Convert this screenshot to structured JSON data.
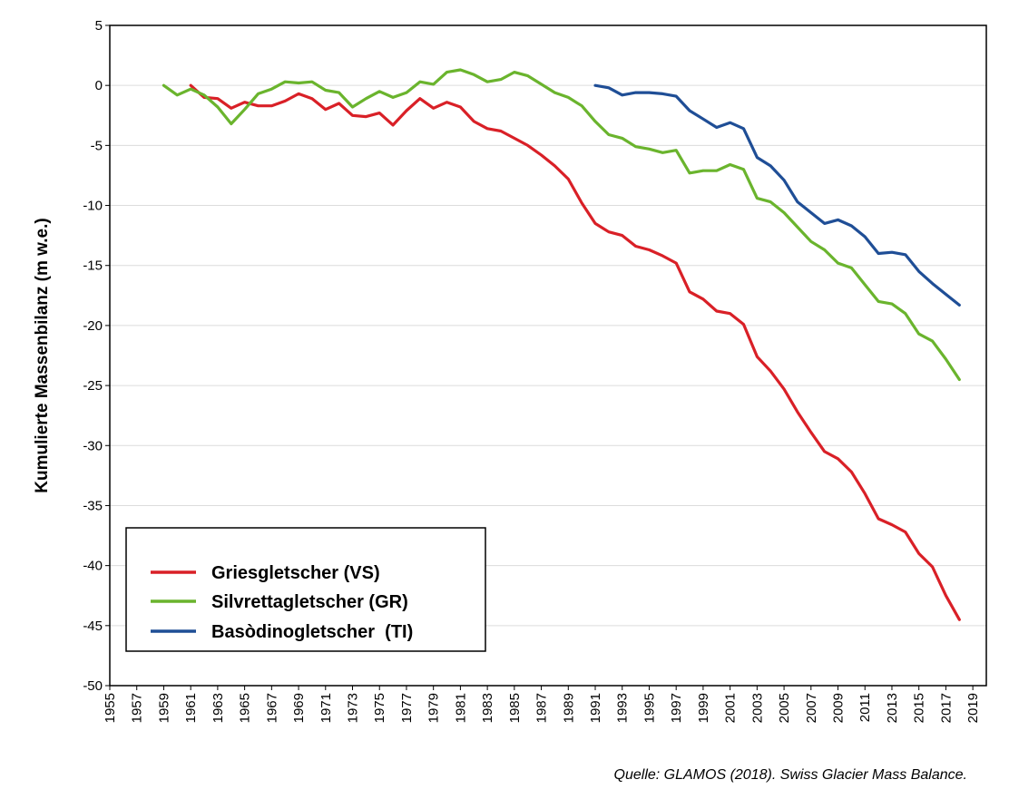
{
  "chart_data": {
    "type": "line",
    "ylabel": "Kumulierte Massenbilanz  (m w.e.)",
    "xlabel": "",
    "xlim": [
      1955,
      2020
    ],
    "ylim": [
      -50,
      5
    ],
    "x_ticks": [
      "1955",
      "1957",
      "1959",
      "1961",
      "1963",
      "1965",
      "1967",
      "1969",
      "1971",
      "1973",
      "1975",
      "1977",
      "1979",
      "1981",
      "1983",
      "1985",
      "1987",
      "1989",
      "1991",
      "1993",
      "1995",
      "1997",
      "1999",
      "2001",
      "2003",
      "2005",
      "2007",
      "2009",
      "2011",
      "2013",
      "2015",
      "2017",
      "2019"
    ],
    "y_ticks": [
      "5",
      "0",
      "-5",
      "-10",
      "-15",
      "-20",
      "-25",
      "-30",
      "-35",
      "-40",
      "-45",
      "-50"
    ],
    "grid": "horizontal",
    "legend_position": "bottom-left",
    "series": [
      {
        "name": "Griesgletscher (VS)",
        "color": "#d92027",
        "x": [
          1961,
          1962,
          1963,
          1964,
          1965,
          1966,
          1967,
          1968,
          1969,
          1970,
          1971,
          1972,
          1973,
          1974,
          1975,
          1976,
          1977,
          1978,
          1979,
          1980,
          1981,
          1982,
          1983,
          1984,
          1985,
          1986,
          1987,
          1988,
          1989,
          1990,
          1991,
          1992,
          1993,
          1994,
          1995,
          1996,
          1997,
          1998,
          1999,
          2000,
          2001,
          2002,
          2003,
          2004,
          2005,
          2006,
          2007,
          2008,
          2009,
          2010,
          2011,
          2012,
          2013,
          2014,
          2015,
          2016,
          2017,
          2018
        ],
        "values": [
          0,
          -1.0,
          -1.1,
          -1.9,
          -1.4,
          -1.7,
          -1.7,
          -1.3,
          -0.7,
          -1.1,
          -2.0,
          -1.5,
          -2.5,
          -2.6,
          -2.3,
          -3.3,
          -2.1,
          -1.1,
          -1.9,
          -1.4,
          -1.8,
          -3.0,
          -3.6,
          -3.8,
          -4.4,
          -5.0,
          -5.8,
          -6.7,
          -7.8,
          -9.8,
          -11.5,
          -12.2,
          -12.5,
          -13.4,
          -13.7,
          -14.2,
          -14.8,
          -17.2,
          -17.8,
          -18.8,
          -19.0,
          -19.9,
          -22.6,
          -23.8,
          -25.3,
          -27.2,
          -28.9,
          -30.5,
          -31.1,
          -32.2,
          -34.0,
          -36.1,
          -36.6,
          -37.2,
          -39.0,
          -40.1,
          -42.5,
          -44.5
        ]
      },
      {
        "name": "Silvrettagletscher (GR)",
        "color": "#6ab42d",
        "x": [
          1959,
          1960,
          1961,
          1962,
          1963,
          1964,
          1965,
          1966,
          1967,
          1968,
          1969,
          1970,
          1971,
          1972,
          1973,
          1974,
          1975,
          1976,
          1977,
          1978,
          1979,
          1980,
          1981,
          1982,
          1983,
          1984,
          1985,
          1986,
          1987,
          1988,
          1989,
          1990,
          1991,
          1992,
          1993,
          1994,
          1995,
          1996,
          1997,
          1998,
          1999,
          2000,
          2001,
          2002,
          2003,
          2004,
          2005,
          2006,
          2007,
          2008,
          2009,
          2010,
          2011,
          2012,
          2013,
          2014,
          2015,
          2016,
          2017,
          2018
        ],
        "values": [
          0,
          -0.8,
          -0.3,
          -0.8,
          -1.8,
          -3.2,
          -2.0,
          -0.7,
          -0.3,
          0.3,
          0.2,
          0.3,
          -0.4,
          -0.6,
          -1.8,
          -1.1,
          -0.5,
          -1.0,
          -0.6,
          0.3,
          0.1,
          1.1,
          1.3,
          0.9,
          0.3,
          0.5,
          1.1,
          0.8,
          0.1,
          -0.6,
          -1.0,
          -1.7,
          -3.0,
          -4.1,
          -4.4,
          -5.1,
          -5.3,
          -5.6,
          -5.4,
          -7.3,
          -7.1,
          -7.1,
          -6.6,
          -7.0,
          -9.4,
          -9.7,
          -10.6,
          -11.8,
          -13.0,
          -13.7,
          -14.8,
          -15.2,
          -16.6,
          -18.0,
          -18.2,
          -19.0,
          -20.7,
          -21.3,
          -22.8,
          -24.5
        ]
      },
      {
        "name": "Basòdinogletscher  (TI)",
        "color": "#1f4e96",
        "x": [
          1991,
          1992,
          1993,
          1994,
          1995,
          1996,
          1997,
          1998,
          1999,
          2000,
          2001,
          2002,
          2003,
          2004,
          2005,
          2006,
          2007,
          2008,
          2009,
          2010,
          2011,
          2012,
          2013,
          2014,
          2015,
          2016,
          2017,
          2018
        ],
        "values": [
          0,
          -0.2,
          -0.8,
          -0.6,
          -0.6,
          -0.7,
          -0.9,
          -2.1,
          -2.8,
          -3.5,
          -3.1,
          -3.6,
          -6.0,
          -6.7,
          -7.9,
          -9.7,
          -10.6,
          -11.5,
          -11.2,
          -11.7,
          -12.6,
          -14.0,
          -13.9,
          -14.1,
          -15.5,
          -16.5,
          -17.4,
          -18.3
        ]
      }
    ]
  },
  "source_note": "Quelle: GLAMOS (2018). Swiss Glacier Mass Balance."
}
